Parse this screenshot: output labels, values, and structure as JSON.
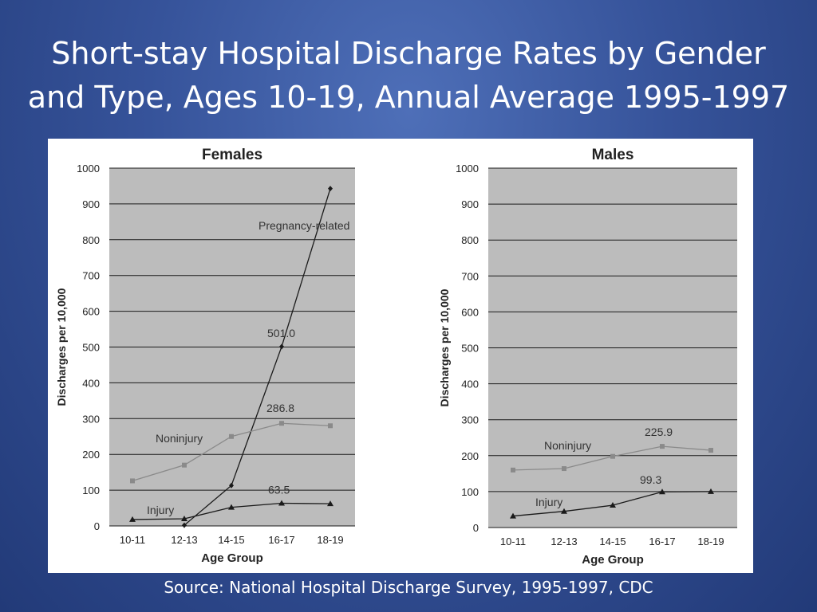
{
  "slide": {
    "title_line1": "Short-stay Hospital Discharge Rates by Gender",
    "title_line2": "and Type, Ages 10-19, Annual Average 1995-1997",
    "source": "Source: National Hospital Discharge Survey, 1995-1997, CDC"
  },
  "colors": {
    "background": "#2f4b93",
    "plot_area": "#bcbcbc",
    "gridline": "#1a1a1a",
    "pregnancy_line": "#1a1a1a",
    "injury_line": "#1a1a1a",
    "noninjury_line": "#8a8a8a"
  },
  "chart_data": [
    {
      "type": "line",
      "title": "Females",
      "xlabel": "Age Group",
      "ylabel": "Discharges per 10,000",
      "categories": [
        "10-11",
        "12-13",
        "14-15",
        "16-17",
        "18-19"
      ],
      "ylim": [
        0,
        1000
      ],
      "yticks": [
        0,
        100,
        200,
        300,
        400,
        500,
        600,
        700,
        800,
        900,
        1000
      ],
      "grid": true,
      "series": [
        {
          "name": "Pregnancy-related",
          "values": [
            null,
            2,
            113,
            501.0,
            943
          ],
          "marker": "diamond",
          "color": "#1a1a1a"
        },
        {
          "name": "Noninjury",
          "values": [
            126,
            170,
            250,
            286.8,
            280
          ],
          "marker": "square",
          "color": "#8a8a8a"
        },
        {
          "name": "Injury",
          "values": [
            18,
            20,
            52,
            63.5,
            62
          ],
          "marker": "triangle",
          "color": "#1a1a1a"
        }
      ],
      "data_labels": [
        {
          "series": "Pregnancy-related",
          "category": "16-17",
          "text": "501.0"
        },
        {
          "series": "Noninjury",
          "category": "16-17",
          "text": "286.8"
        },
        {
          "series": "Injury",
          "category": "16-17",
          "text": "63.5"
        }
      ]
    },
    {
      "type": "line",
      "title": "Males",
      "xlabel": "Age Group",
      "ylabel": "Discharges per 10,000",
      "categories": [
        "10-11",
        "12-13",
        "14-15",
        "16-17",
        "18-19"
      ],
      "ylim": [
        0,
        1000
      ],
      "yticks": [
        0,
        100,
        200,
        300,
        400,
        500,
        600,
        700,
        800,
        900,
        1000
      ],
      "grid": true,
      "series": [
        {
          "name": "Noninjury",
          "values": [
            160,
            164,
            198,
            225.9,
            215
          ],
          "marker": "square",
          "color": "#8a8a8a"
        },
        {
          "name": "Injury",
          "values": [
            32,
            45,
            62,
            99.3,
            100
          ],
          "marker": "triangle",
          "color": "#1a1a1a"
        }
      ],
      "data_labels": [
        {
          "series": "Noninjury",
          "category": "16-17",
          "text": "225.9"
        },
        {
          "series": "Injury",
          "category": "16-17",
          "text": "99.3"
        }
      ]
    }
  ]
}
